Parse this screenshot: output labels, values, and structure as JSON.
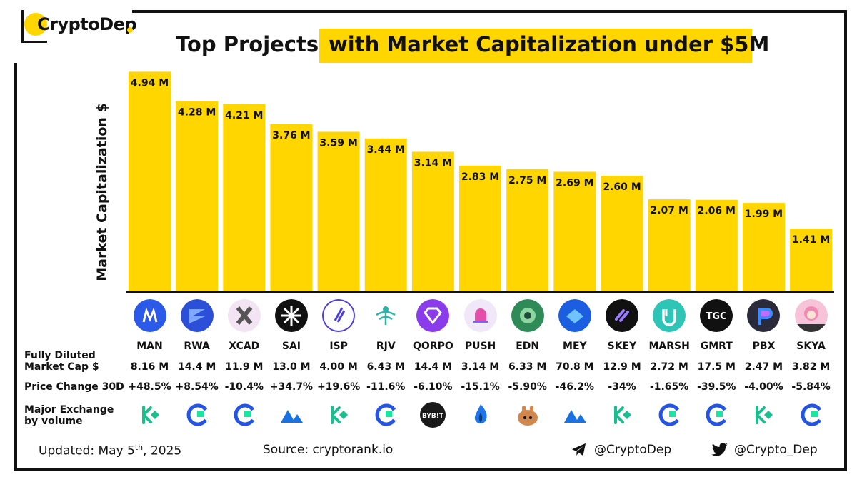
{
  "brand": "CryptoDep",
  "title_part1": "Top Projects",
  "title_part2": "with Market Capitalization under $5M",
  "chart_data": {
    "type": "bar",
    "title": "Top Projects with Market Capitalization under $5M",
    "ylabel": "Market Capitalization $",
    "xlabel": "",
    "ylim": [
      0,
      5.3
    ],
    "categories": [
      "MAN",
      "RWA",
      "XCAD",
      "SAI",
      "ISP",
      "RJV",
      "QORPO",
      "PUSH",
      "EDN",
      "MEY",
      "SKEY",
      "MARSH",
      "GMRT",
      "PBX",
      "SKYA"
    ],
    "values": [
      4.94,
      4.28,
      4.21,
      3.76,
      3.59,
      3.44,
      3.14,
      2.83,
      2.75,
      2.69,
      2.6,
      2.07,
      2.06,
      1.99,
      1.41
    ],
    "value_labels": [
      "4.94 M",
      "4.28 M",
      "4.21 M",
      "3.76 M",
      "3.59 M",
      "3.44 M",
      "3.14 M",
      "2.83 M",
      "2.75 M",
      "2.69 M",
      "2.60 M",
      "2.07 M",
      "2.06 M",
      "1.99 M",
      "1.41 M"
    ],
    "bar_color": "#FFD600"
  },
  "table": {
    "row_labels": {
      "fdv": "Fully Diluted\nMarket Cap $",
      "price_change": "Price Change 30D",
      "exchange": "Major Exchange\nby volume"
    },
    "fdv": [
      "8.16 M",
      "14.4 M",
      "11.9 M",
      "13.0 M",
      "4.00 M",
      "6.43 M",
      "14.4 M",
      "3.14 M",
      "6.33 M",
      "70.8 M",
      "12.9 M",
      "2.72 M",
      "17.5 M",
      "2.47 M",
      "3.82 M"
    ],
    "price_change": [
      "+48.5%",
      "+8.54%",
      "-10.4%",
      "+34.7%",
      "+19.6%",
      "-11.6%",
      "-6.10%",
      "-15.1%",
      "-5.90%",
      "-46.2%",
      "-34%",
      "-1.65%",
      "-39.5%",
      "-4.00%",
      "-5.84%"
    ],
    "exchanges": [
      "kucoin-icon",
      "gate-icon",
      "gate-icon",
      "mexc-icon",
      "kucoin-icon",
      "gate-icon",
      "bybit-icon",
      "huobi-icon",
      "pancakeswap-icon",
      "mexc-icon",
      "kucoin-icon",
      "gate-icon",
      "gate-icon",
      "kucoin-icon",
      "gate-icon"
    ],
    "bybit_text": "BYB!T",
    "icons": [
      "man-icon",
      "rwa-icon",
      "xcad-icon",
      "sai-icon",
      "isp-icon",
      "rjv-icon",
      "qorpo-icon",
      "push-icon",
      "edn-icon",
      "mey-icon",
      "skey-icon",
      "marsh-icon",
      "gmrt-icon",
      "pbx-icon",
      "skya-icon"
    ],
    "icon_colors": [
      "#2B59E8",
      "#2C4FD8",
      "#F2E4F2",
      "#111111",
      "#FFFFFF",
      "#FFFFFF",
      "#8A3BEA",
      "#F0E8F8",
      "#2E8B57",
      "#1B5FE0",
      "#111111",
      "#2EC4B6",
      "#111111",
      "#2A2A3A",
      "#F6C3D8"
    ],
    "gmrt_text": "TGC"
  },
  "footer": {
    "updated_prefix": "Updated: May 5",
    "updated_sup": "th",
    "updated_suffix": ", 2025",
    "source": "Source: cryptorank.io",
    "telegram": "@CryptoDep",
    "twitter": "@Crypto_Dep"
  }
}
